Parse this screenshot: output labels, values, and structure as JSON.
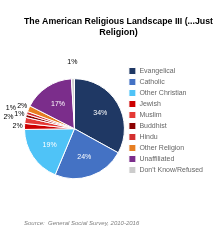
{
  "chart_data": {
    "type": "pie",
    "title": "The American Religious Landscape III (...Just Religion)",
    "categories": [
      "Evangelical",
      "Catholic",
      "Other Christian",
      "Jewish",
      "Muslim",
      "Buddhist",
      "Hindu",
      "Other Religion",
      "Unaffiliated",
      "Don't Know/Refused"
    ],
    "values": [
      34,
      24,
      19,
      2,
      2,
      1,
      1,
      2,
      17,
      1
    ],
    "value_labels": [
      "34%",
      "24%",
      "19%",
      "2%",
      "2%",
      "1%",
      "1%",
      "2%",
      "17%",
      "1%"
    ],
    "colors": [
      "#1f3864",
      "#4472c4",
      "#4fc3f7",
      "#cc0000",
      "#e53935",
      "#8b0000",
      "#d32f2f",
      "#e67e22",
      "#7b2d8b",
      "#cccccc"
    ],
    "data_labels": true,
    "legend": "right",
    "annotations": [
      "Source:  General Social Survey, 2010-2016"
    ]
  }
}
